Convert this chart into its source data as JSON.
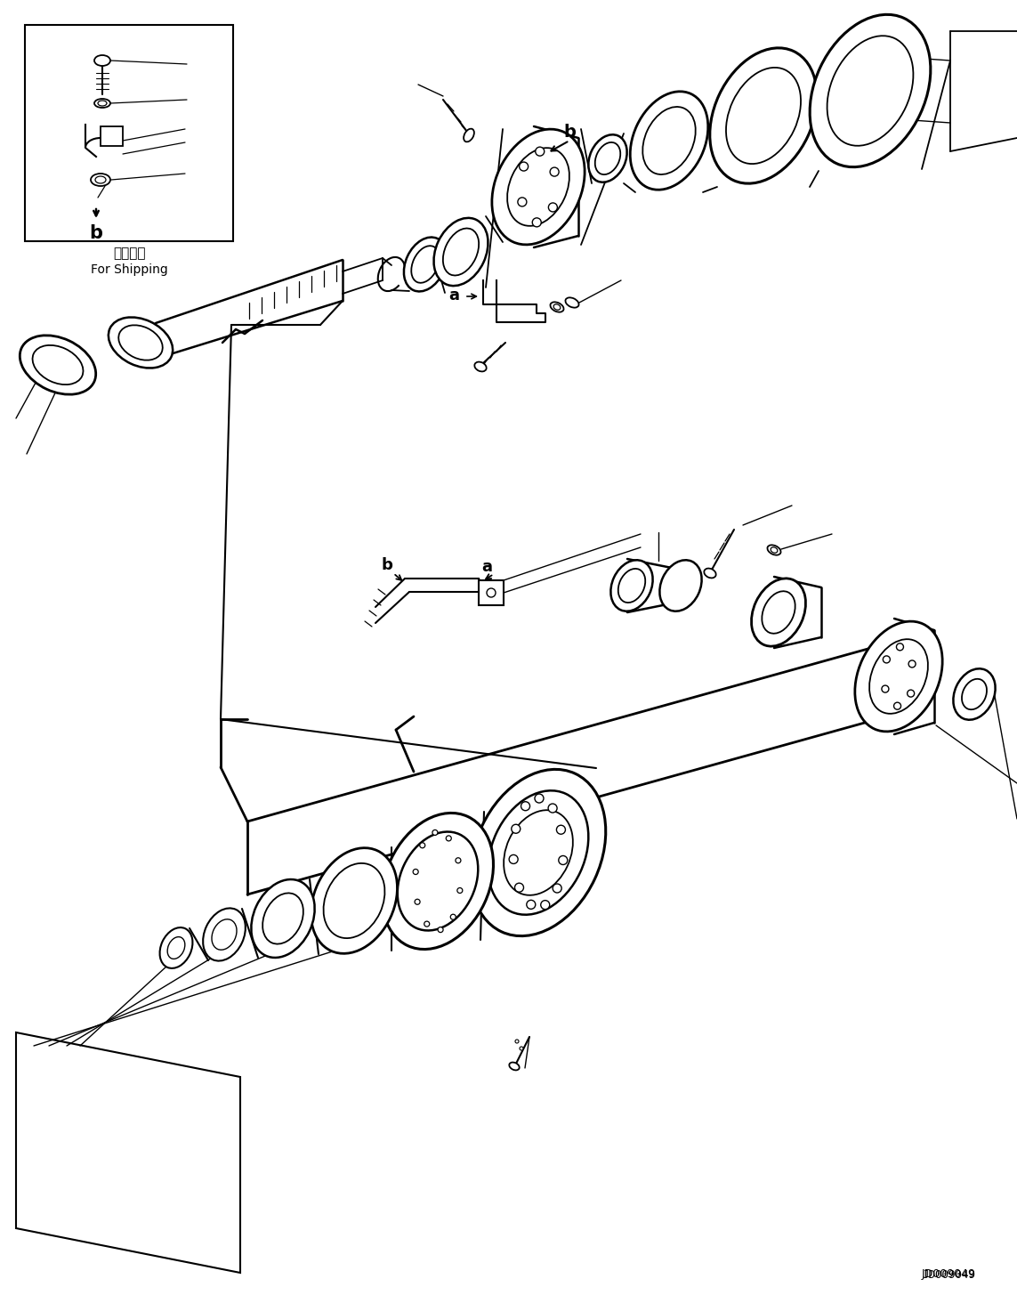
{
  "background_color": "#ffffff",
  "line_color": "#000000",
  "fig_width": 11.43,
  "fig_height": 14.55,
  "watermark": "JD009049",
  "inset_label": "For Shipping",
  "inset_label_jp": "運搜部品"
}
